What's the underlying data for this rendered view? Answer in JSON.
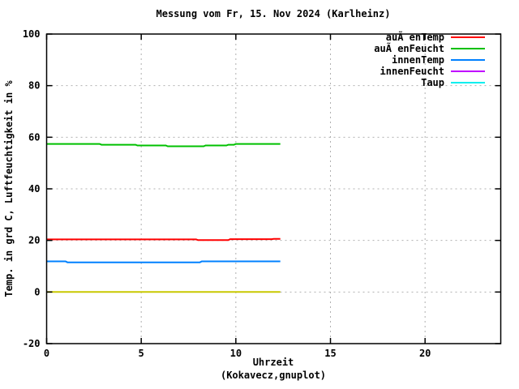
{
  "title": "Messung vom Fr, 15. Nov 2024 (Karlheinz)",
  "colors": {
    "background": "#ffffff",
    "border": "#000000",
    "grid": "#b0b0b0",
    "text": "#000000"
  },
  "chart_data": {
    "type": "line",
    "title": "Messung vom Fr, 15. Nov 2024 (Karlheinz)",
    "xlabel": "Uhrzeit",
    "x_sublabel": "(Kokavecz,gnuplot)",
    "ylabel": "Temp. in grd C, Luftfeuchtigkeit in %",
    "xlim": [
      0,
      24
    ],
    "ylim": [
      -20,
      100
    ],
    "xticks": [
      0,
      5,
      10,
      15,
      20
    ],
    "yticks": [
      -20,
      0,
      20,
      40,
      60,
      80,
      100
    ],
    "grid": true,
    "legend_position": "top-right",
    "series": [
      {
        "name": "auÃ enTemp",
        "color": "#ff0000",
        "in_legend": true,
        "points": [
          [
            0,
            20.4
          ],
          [
            7.9,
            20.4
          ],
          [
            8.0,
            20.1
          ],
          [
            9.6,
            20.1
          ],
          [
            9.7,
            20.5
          ],
          [
            11.9,
            20.5
          ],
          [
            12.0,
            20.6
          ],
          [
            12.35,
            20.6
          ]
        ]
      },
      {
        "name": "auÃ enFeucht",
        "color": "#00c000",
        "in_legend": true,
        "points": [
          [
            0,
            57.4
          ],
          [
            2.8,
            57.4
          ],
          [
            2.9,
            57.1
          ],
          [
            4.7,
            57.1
          ],
          [
            4.8,
            56.8
          ],
          [
            6.3,
            56.8
          ],
          [
            6.4,
            56.5
          ],
          [
            8.3,
            56.5
          ],
          [
            8.4,
            56.8
          ],
          [
            9.5,
            56.8
          ],
          [
            9.6,
            57.1
          ],
          [
            9.9,
            57.1
          ],
          [
            10.0,
            57.4
          ],
          [
            12.35,
            57.4
          ]
        ]
      },
      {
        "name": "innenTemp",
        "color": "#0080ff",
        "in_legend": true,
        "points": [
          [
            0,
            11.9
          ],
          [
            1.0,
            11.9
          ],
          [
            1.1,
            11.5
          ],
          [
            8.1,
            11.5
          ],
          [
            8.2,
            11.9
          ],
          [
            12.35,
            11.9
          ]
        ]
      },
      {
        "name": "innenFeucht",
        "color": "#c000ff",
        "in_legend": true,
        "points": []
      },
      {
        "name": "Taup",
        "color": "#00eeee",
        "in_legend": true,
        "points": []
      },
      {
        "name": "",
        "color": "#c8c800",
        "in_legend": false,
        "points": [
          [
            0,
            0
          ],
          [
            12.35,
            0
          ]
        ]
      }
    ]
  }
}
